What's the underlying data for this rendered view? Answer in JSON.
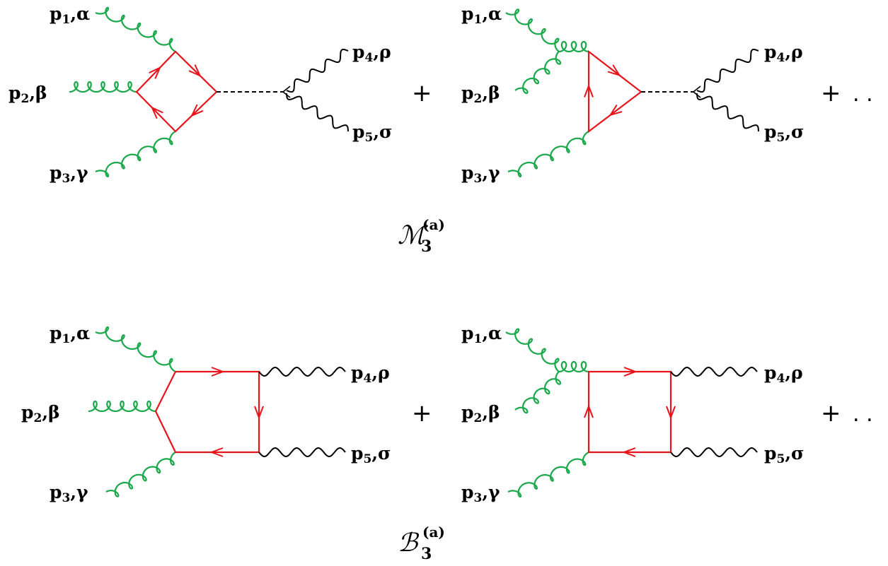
{
  "diagrams": [
    {
      "labels": {
        "g1": {
          "p": "p",
          "sub": "1",
          "idx": ",α"
        },
        "g2": {
          "p": "p",
          "sub": "2",
          "idx": ",β"
        },
        "g3": {
          "p": "p",
          "sub": "3",
          "idx": ",γ"
        },
        "v4": {
          "p": "p",
          "sub": "4",
          "idx": ",ρ"
        },
        "v5": {
          "p": "p",
          "sub": "5",
          "idx": ",σ"
        }
      }
    },
    {
      "labels": {
        "g1": {
          "p": "p",
          "sub": "1",
          "idx": ",α"
        },
        "g2": {
          "p": "p",
          "sub": "2",
          "idx": ",β"
        },
        "g3": {
          "p": "p",
          "sub": "3",
          "idx": ",γ"
        },
        "v4": {
          "p": "p",
          "sub": "4",
          "idx": ",ρ"
        },
        "v5": {
          "p": "p",
          "sub": "5",
          "idx": ",σ"
        }
      }
    },
    {
      "labels": {
        "g1": {
          "p": "p",
          "sub": "1",
          "idx": ",α"
        },
        "g2": {
          "p": "p",
          "sub": "2",
          "idx": ",β"
        },
        "g3": {
          "p": "p",
          "sub": "3",
          "idx": ",γ"
        },
        "v4": {
          "p": "p",
          "sub": "4",
          "idx": ",ρ"
        },
        "v5": {
          "p": "p",
          "sub": "5",
          "idx": ",σ"
        }
      }
    },
    {
      "labels": {
        "g1": {
          "p": "p",
          "sub": "1",
          "idx": ",α"
        },
        "g2": {
          "p": "p",
          "sub": "2",
          "idx": ",β"
        },
        "g3": {
          "p": "p",
          "sub": "3",
          "idx": ",γ"
        },
        "v4": {
          "p": "p",
          "sub": "4",
          "idx": ",ρ"
        },
        "v5": {
          "p": "p",
          "sub": "5",
          "idx": ",σ"
        }
      }
    }
  ],
  "operators": {
    "plus_top": "+",
    "plus_top_end": "+",
    "dots_top": ". .",
    "plus_bottom": "+",
    "plus_bottom_end": "+",
    "dots_bottom": ". ."
  },
  "captions": {
    "top": {
      "symbol": "ℳ",
      "sub": "3",
      "sup": "(a)"
    },
    "bottom": {
      "symbol": "ℬ",
      "sub": "3",
      "sup": "(a)"
    }
  },
  "colors": {
    "fermion": "#e8141c",
    "gluon": "#1aa84a",
    "boson": "#000000"
  }
}
